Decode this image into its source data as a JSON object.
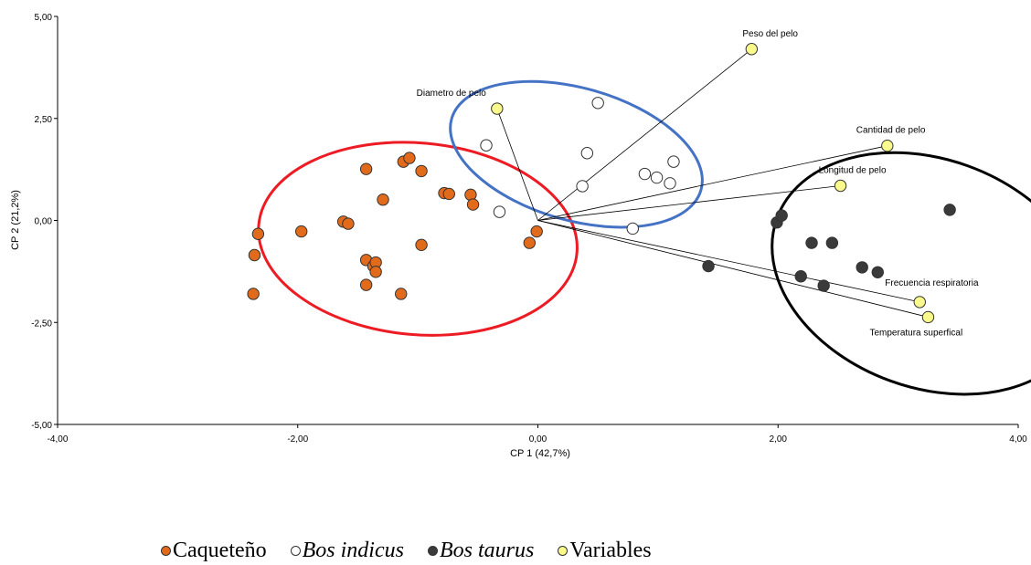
{
  "chart_data": {
    "type": "scatter",
    "xlabel": "CP 1 (42,7%)",
    "ylabel": "CP 2 (21,2%)",
    "xlim": [
      -4,
      4
    ],
    "ylim": [
      -5,
      5
    ],
    "x_ticks": [
      "-4,00",
      "-2,00",
      "0,00",
      "2,00",
      "4,00"
    ],
    "y_ticks": [
      "5,00",
      "2,50",
      "0,00",
      "-2,50",
      "-5,00"
    ],
    "grid": false,
    "legend_position": "bottom",
    "series": [
      {
        "name": "Caqueteño",
        "color": "#e26a1b",
        "points": [
          [
            -2.33,
            -0.33
          ],
          [
            -2.36,
            -0.85
          ],
          [
            -2.37,
            -1.8
          ],
          [
            -1.97,
            -0.27
          ],
          [
            -1.62,
            -0.03
          ],
          [
            -1.58,
            -0.08
          ],
          [
            -1.43,
            1.26
          ],
          [
            -1.43,
            -0.97
          ],
          [
            -1.43,
            -1.58
          ],
          [
            -1.37,
            -1.12
          ],
          [
            -1.35,
            -1.03
          ],
          [
            -1.35,
            -1.26
          ],
          [
            -1.29,
            0.51
          ],
          [
            -1.14,
            -1.8
          ],
          [
            -1.12,
            1.44
          ],
          [
            -1.07,
            1.53
          ],
          [
            -0.97,
            1.21
          ],
          [
            -0.97,
            -0.6
          ],
          [
            -0.78,
            0.67
          ],
          [
            -0.74,
            0.65
          ],
          [
            -0.56,
            0.63
          ],
          [
            -0.54,
            0.39
          ],
          [
            -0.07,
            -0.55
          ],
          [
            -0.01,
            -0.27
          ]
        ]
      },
      {
        "name": "Bos indicus",
        "color": "#ffffff",
        "points": [
          [
            -0.43,
            1.84
          ],
          [
            -0.32,
            0.21
          ],
          [
            0.37,
            0.84
          ],
          [
            0.41,
            1.65
          ],
          [
            0.5,
            2.88
          ],
          [
            0.79,
            -0.2
          ],
          [
            0.89,
            1.14
          ],
          [
            0.99,
            1.05
          ],
          [
            1.1,
            0.91
          ],
          [
            1.13,
            1.44
          ]
        ]
      },
      {
        "name": "Bos taurus",
        "color": "#3a3a3a",
        "points": [
          [
            1.42,
            -1.12
          ],
          [
            1.99,
            -0.05
          ],
          [
            2.03,
            0.12
          ],
          [
            2.19,
            -1.37
          ],
          [
            2.28,
            -0.55
          ],
          [
            2.38,
            -1.6
          ],
          [
            2.45,
            -0.55
          ],
          [
            2.7,
            -1.15
          ],
          [
            2.83,
            -1.27
          ],
          [
            3.43,
            0.26
          ]
        ]
      },
      {
        "name": "Variables",
        "color": "#fafa8c",
        "points": [
          [
            1.78,
            4.2
          ],
          [
            -0.34,
            2.74
          ],
          [
            2.91,
            1.83
          ],
          [
            2.52,
            0.85
          ],
          [
            3.18,
            -2.0
          ],
          [
            3.25,
            -2.37
          ]
        ],
        "labels": [
          "Peso del pelo",
          "Diametro de pelo",
          "Cantidad de pelo",
          "Longitud de pelo",
          "Frecuencia respiratoria",
          "Temperatura superfical"
        ]
      }
    ],
    "ellipses": [
      {
        "color": "#ed1c24",
        "cx": -1.0,
        "cy": -0.45,
        "rx": 1.33,
        "ry": 2.35,
        "angle": 5
      },
      {
        "color": "#4472c4",
        "cx": 0.32,
        "cy": 1.62,
        "rx": 1.08,
        "ry": 1.62,
        "angle": 16
      },
      {
        "color": "#000000",
        "cx": 3.26,
        "cy": -1.3,
        "rx": 1.35,
        "ry": 2.8,
        "angle": 20
      }
    ]
  },
  "legend": {
    "caqueteno": "Caqueteño",
    "indicus": "Bos indicus",
    "taurus": "Bos taurus",
    "variables": "Variables"
  }
}
